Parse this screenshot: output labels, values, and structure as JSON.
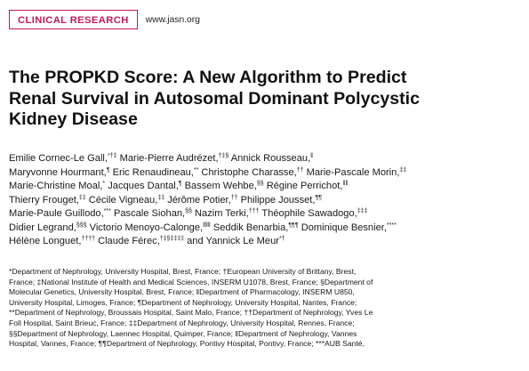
{
  "header": {
    "section_label": "CLINICAL RESEARCH",
    "journal_url": "www.jasn.org"
  },
  "article": {
    "title_lines": [
      "The PROPKD Score: A New Algorithm to Predict",
      "Renal Survival in Autosomal Dominant Polycystic",
      "Kidney Disease"
    ]
  },
  "authors": {
    "lines": [
      "Emilie Cornec-Le Gall,*†‡ Marie-Pierre Audrézet,†‡§ Annick Rousseau,‖",
      "Maryvonne Hourmant,¶ Eric Renaudineau,** Christophe Charasse,†† Marie-Pascale Morin,‡‡",
      "Marie-Christine Moal,* Jacques Dantal,¶ Bassem Wehbe,§§ Régine Perrichot,‖‖",
      "Thierry Frouget,‡‡ Cécile Vigneau,‡‡ Jérôme Potier,†† Philippe Jousset,¶¶",
      "Marie-Paule Guillodo,*** Pascale Siohan,§§ Nazim Terki,††† Théophile Sawadogo,‡‡‡",
      "Didier Legrand,§§§ Victorio Menoyo-Calonge,‖‖‖ Seddik Benarbia,¶¶¶ Dominique Besnier,****",
      "Hélène Longuet,†††† Claude Férec,†‡§‡‡‡‡ and Yannick Le Meur*†"
    ]
  },
  "affiliations": {
    "lines": [
      "*Department of Nephrology, University Hospital, Brest, France; †European University of Brittany, Brest,",
      "France; ‡National Institute of Health and Medical Sciences, INSERM U1078, Brest, France; §Department of",
      "Molecular Genetics, University Hospital, Brest, France; ‖Department of Pharmacology, INSERM U850,",
      "University Hospital, Limoges, France; ¶Department of Nephrology, University Hospital, Nantes, France;",
      "**Department of Nephrology, Broussais Hospital, Saint Malo, France; ††Department of Nephrology, Yves Le",
      "Foll Hospital, Saint Brieuc, France; ‡‡Department of Nephrology, University Hospital, Rennes, France;",
      "§§Department of Nephrology, Laennec Hospital, Quimper, France; ‖Department of Nephrology, Vannes",
      "Hospital, Vannes, France; ¶¶Department of Nephrology, Pontivy Hospital, Pontivy, France; ***AUB Santé,"
    ]
  }
}
